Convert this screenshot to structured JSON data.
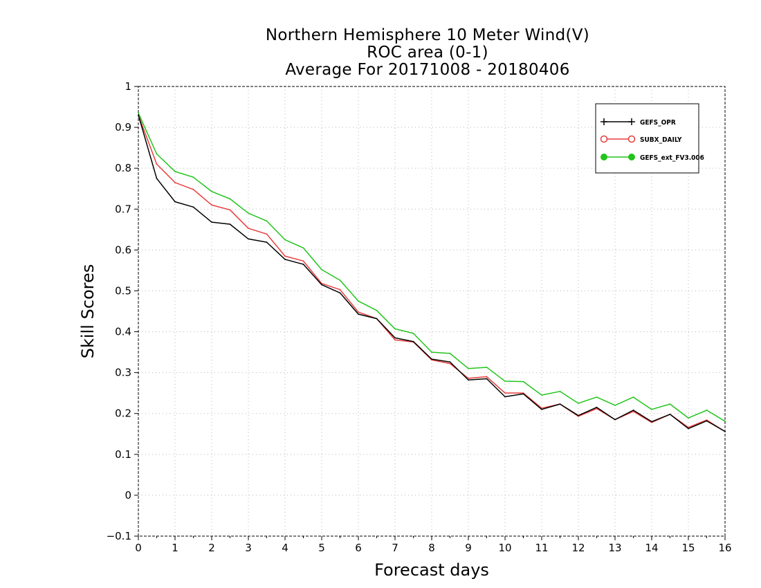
{
  "chart_data": {
    "type": "line",
    "title": [
      "Northern Hemisphere 10 Meter Wind(V)",
      "ROC area (0-1)",
      "Average For 20171008 - 20180406"
    ],
    "xlabel": "Forecast days",
    "ylabel": "Skill Scores",
    "xlim": [
      0,
      16
    ],
    "ylim": [
      -0.1,
      1
    ],
    "xticks": [
      0,
      1,
      2,
      3,
      4,
      5,
      6,
      7,
      8,
      9,
      10,
      11,
      12,
      13,
      14,
      15,
      16
    ],
    "yticks": [
      -0.1,
      0,
      0.1,
      0.2,
      0.3,
      0.4,
      0.5,
      0.6,
      0.7,
      0.8,
      0.9,
      1
    ],
    "ytick_labels": [
      "−0.1",
      "0",
      "0.1",
      "0.2",
      "0.3",
      "0.4",
      "0.5",
      "0.6",
      "0.7",
      "0.8",
      "0.9",
      "1"
    ],
    "grid": true,
    "legend_position": "top-right",
    "x": [
      0,
      0.5,
      1,
      1.5,
      2,
      2.5,
      3,
      3.5,
      4,
      4.5,
      5,
      5.5,
      6,
      6.5,
      7,
      7.5,
      8,
      8.5,
      9,
      9.5,
      10,
      10.5,
      11,
      11.5,
      12,
      12.5,
      13,
      13.5,
      14,
      14.5,
      15,
      15.5,
      16
    ],
    "series": [
      {
        "name": "GEFS_OPR",
        "color": "#000000",
        "marker": "plus",
        "values": [
          0.93,
          0.775,
          0.718,
          0.705,
          0.668,
          0.663,
          0.627,
          0.619,
          0.577,
          0.565,
          0.515,
          0.495,
          0.443,
          0.432,
          0.385,
          0.376,
          0.333,
          0.326,
          0.282,
          0.285,
          0.241,
          0.248,
          0.21,
          0.223,
          0.195,
          0.215,
          0.185,
          0.208,
          0.18,
          0.198,
          0.163,
          0.182,
          0.156
        ]
      },
      {
        "name": "SUBX_DAILY",
        "color": "#e83c3c",
        "marker": "open-circle",
        "values": [
          0.93,
          0.81,
          0.765,
          0.748,
          0.71,
          0.698,
          0.653,
          0.639,
          0.585,
          0.573,
          0.518,
          0.503,
          0.448,
          0.432,
          0.38,
          0.375,
          0.331,
          0.322,
          0.286,
          0.29,
          0.25,
          0.25,
          0.213,
          0.223,
          0.193,
          0.212,
          0.185,
          0.205,
          0.178,
          0.198,
          0.166,
          0.184,
          0.156
        ]
      },
      {
        "name": "GEFS_ext_FV3.006",
        "color": "#22c41c",
        "marker": "filled-circle",
        "values": [
          0.935,
          0.835,
          0.792,
          0.778,
          0.743,
          0.725,
          0.69,
          0.671,
          0.625,
          0.605,
          0.552,
          0.526,
          0.475,
          0.452,
          0.407,
          0.396,
          0.35,
          0.347,
          0.31,
          0.313,
          0.279,
          0.278,
          0.245,
          0.254,
          0.225,
          0.24,
          0.22,
          0.24,
          0.21,
          0.223,
          0.189,
          0.208,
          0.181
        ]
      }
    ]
  }
}
